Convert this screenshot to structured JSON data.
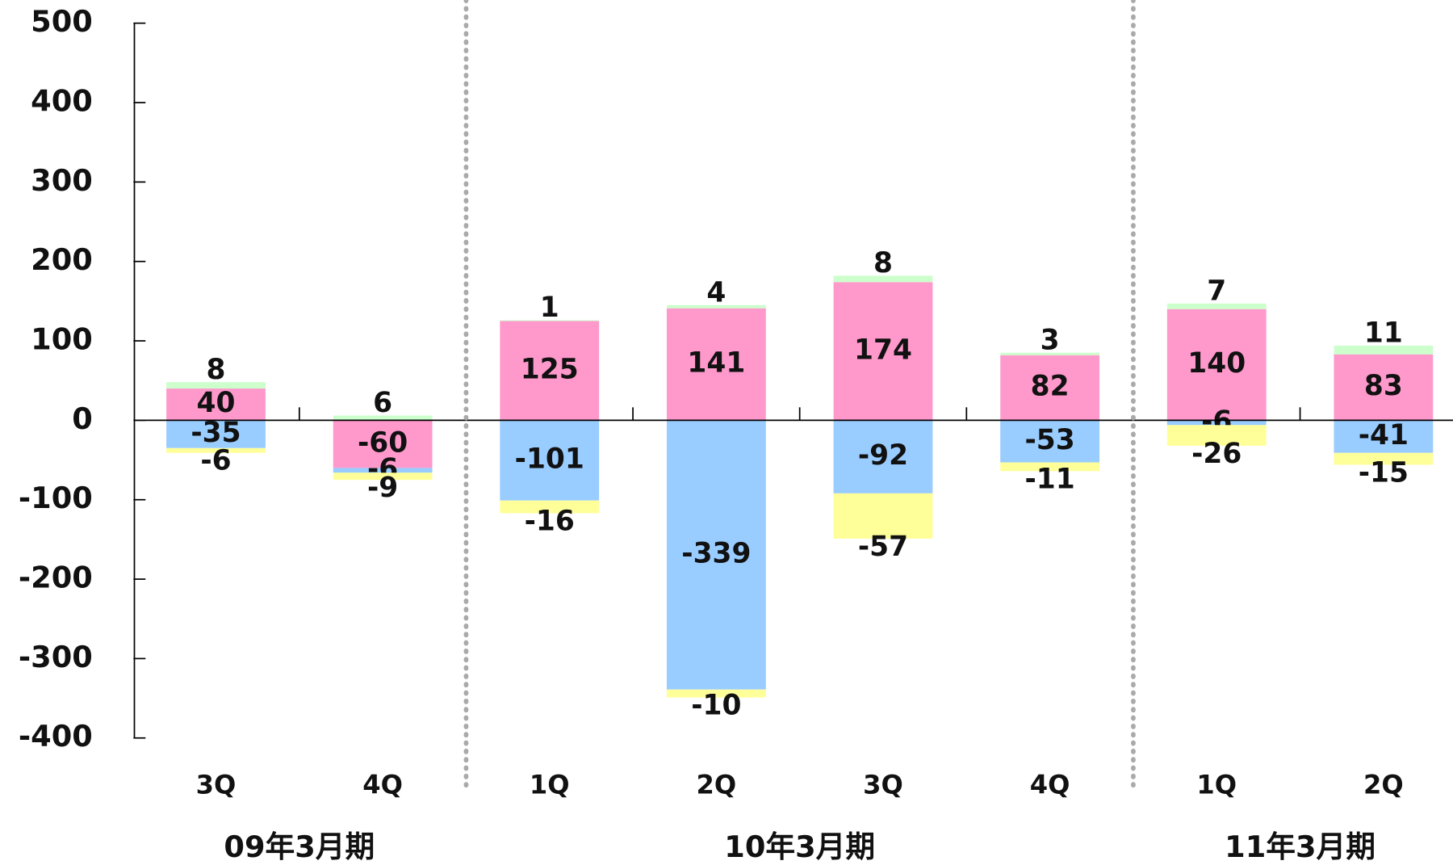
{
  "chart_data": {
    "type": "stacked-bar",
    "categories": [
      "3Q",
      "4Q",
      "1Q",
      "2Q",
      "3Q",
      "4Q",
      "1Q",
      "2Q"
    ],
    "group_labels": [
      "09年3月期",
      "10年3月期",
      "11年3月期"
    ],
    "group_sizes": [
      2,
      4,
      2
    ],
    "series": [
      {
        "color": "#ff99cc",
        "values": [
          40,
          -60,
          125,
          141,
          174,
          82,
          140,
          83
        ]
      },
      {
        "color": "#ccffcc",
        "values": [
          8,
          6,
          1,
          4,
          8,
          3,
          7,
          11
        ]
      },
      {
        "color": "#99ccff",
        "values": [
          -35,
          -6,
          -101,
          -339,
          -92,
          -53,
          -6,
          -41
        ]
      },
      {
        "color": "#ffff99",
        "values": [
          -6,
          -9,
          -16,
          -10,
          -57,
          -11,
          -26,
          -15
        ]
      }
    ],
    "ylim": [
      -400,
      500
    ],
    "yticks": [
      -400,
      -300,
      -200,
      -100,
      0,
      100,
      200,
      300,
      400,
      500
    ]
  }
}
